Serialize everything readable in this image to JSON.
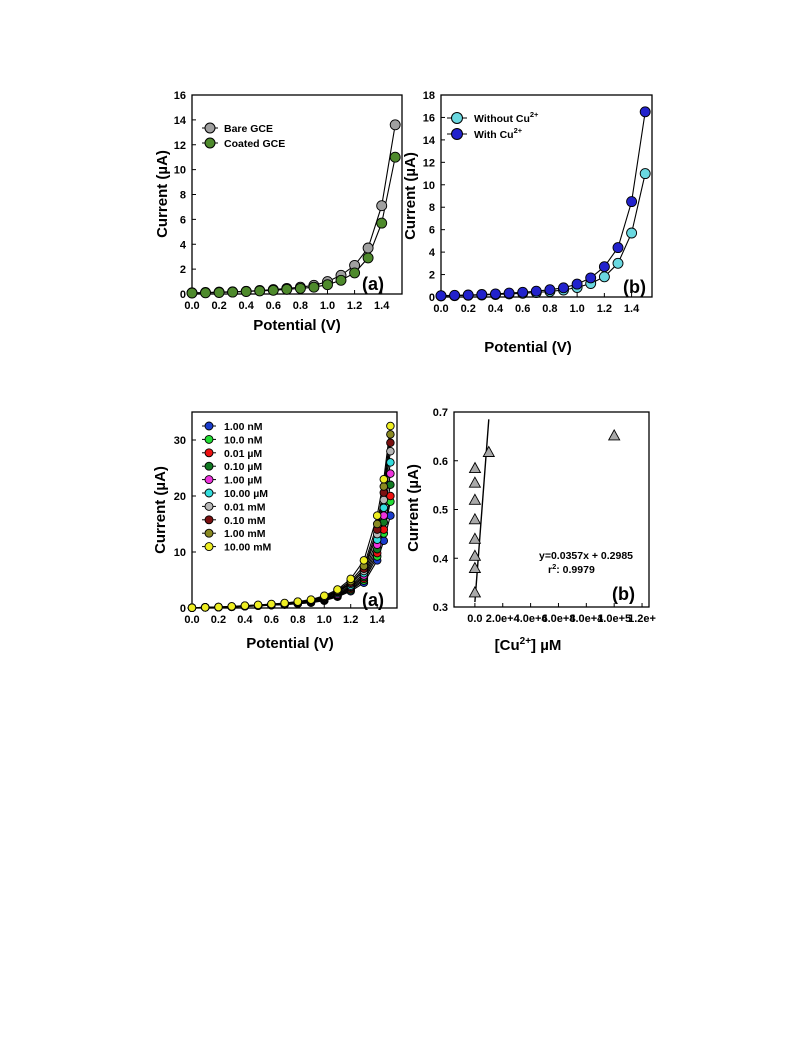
{
  "chart_data": [
    {
      "type": "line",
      "panel_label": "(a)",
      "xlabel": "Potential (V)",
      "ylabel": "Current (µA)",
      "xlim": [
        0,
        1.55
      ],
      "ylim": [
        0,
        16
      ],
      "x_ticks": [
        0.0,
        0.2,
        0.4,
        0.6,
        0.8,
        1.0,
        1.2,
        1.4
      ],
      "x_tick_labels": [
        "0.0",
        "0.2",
        "0.4",
        "0.6",
        "0.8",
        "1.0",
        "1.2",
        "1.4"
      ],
      "y_ticks": [
        0,
        2,
        4,
        6,
        8,
        10,
        12,
        14,
        16
      ],
      "y_tick_labels": [
        "0",
        "2",
        "4",
        "6",
        "8",
        "10",
        "12",
        "14",
        "16"
      ],
      "legend_position": "top-left",
      "series": [
        {
          "name": "Bare GCE",
          "color": "#a0a0a0",
          "x": [
            0.0,
            0.1,
            0.2,
            0.3,
            0.4,
            0.5,
            0.6,
            0.7,
            0.8,
            0.9,
            1.0,
            1.1,
            1.2,
            1.3,
            1.4,
            1.5
          ],
          "y": [
            0.1,
            0.12,
            0.15,
            0.18,
            0.22,
            0.28,
            0.35,
            0.45,
            0.55,
            0.7,
            1.0,
            1.5,
            2.3,
            3.7,
            7.1,
            13.6
          ]
        },
        {
          "name": "Coated GCE",
          "color": "#4e8a2c",
          "x": [
            0.0,
            0.1,
            0.2,
            0.3,
            0.4,
            0.5,
            0.6,
            0.7,
            0.8,
            0.9,
            1.0,
            1.1,
            1.2,
            1.3,
            1.4,
            1.5
          ],
          "y": [
            0.08,
            0.1,
            0.12,
            0.15,
            0.2,
            0.25,
            0.3,
            0.38,
            0.45,
            0.55,
            0.75,
            1.1,
            1.7,
            2.9,
            5.7,
            11.0
          ]
        }
      ]
    },
    {
      "type": "line",
      "panel_label": "(b)",
      "xlabel": "Potential (V)",
      "ylabel": "Current (µA)",
      "xlim": [
        0,
        1.55
      ],
      "ylim": [
        0,
        18
      ],
      "x_ticks": [
        0.0,
        0.2,
        0.4,
        0.6,
        0.8,
        1.0,
        1.2,
        1.4
      ],
      "x_tick_labels": [
        "0.0",
        "0.2",
        "0.4",
        "0.6",
        "0.8",
        "1.0",
        "1.2",
        "1.4"
      ],
      "y_ticks": [
        0,
        2,
        4,
        6,
        8,
        10,
        12,
        14,
        16,
        18
      ],
      "y_tick_labels": [
        "0",
        "2",
        "4",
        "6",
        "8",
        "10",
        "12",
        "14",
        "16",
        "18"
      ],
      "legend_position": "top-left",
      "series": [
        {
          "name": "Without Cu",
          "name_sup": "2+",
          "color": "#6ad8e0",
          "x": [
            0.0,
            0.1,
            0.2,
            0.3,
            0.4,
            0.5,
            0.6,
            0.7,
            0.8,
            0.9,
            1.0,
            1.1,
            1.2,
            1.3,
            1.4,
            1.5
          ],
          "y": [
            0.1,
            0.12,
            0.15,
            0.18,
            0.22,
            0.28,
            0.33,
            0.4,
            0.5,
            0.62,
            0.85,
            1.2,
            1.8,
            3.0,
            5.7,
            11.0
          ]
        },
        {
          "name": "With Cu",
          "name_sup": "2+",
          "color": "#2222cc",
          "x": [
            0.0,
            0.1,
            0.2,
            0.3,
            0.4,
            0.5,
            0.6,
            0.7,
            0.8,
            0.9,
            1.0,
            1.1,
            1.2,
            1.3,
            1.4,
            1.5
          ],
          "y": [
            0.12,
            0.15,
            0.18,
            0.22,
            0.28,
            0.35,
            0.42,
            0.52,
            0.65,
            0.82,
            1.15,
            1.7,
            2.7,
            4.4,
            8.5,
            16.5
          ]
        }
      ]
    },
    {
      "type": "line",
      "panel_label": "(a)",
      "xlabel": "Potential (V)",
      "ylabel": "Current (µA)",
      "xlim": [
        0,
        1.55
      ],
      "ylim": [
        0,
        35
      ],
      "x_ticks": [
        0.0,
        0.2,
        0.4,
        0.6,
        0.8,
        1.0,
        1.2,
        1.4
      ],
      "x_tick_labels": [
        "0.0",
        "0.2",
        "0.4",
        "0.6",
        "0.8",
        "1.0",
        "1.2",
        "1.4"
      ],
      "y_ticks": [
        0,
        10,
        20,
        30
      ],
      "y_tick_labels": [
        "0",
        "10",
        "20",
        "30"
      ],
      "legend_position": "top-left",
      "x": [
        0.0,
        0.1,
        0.2,
        0.3,
        0.4,
        0.5,
        0.6,
        0.7,
        0.8,
        0.9,
        1.0,
        1.1,
        1.2,
        1.3,
        1.4,
        1.45,
        1.5
      ],
      "series": [
        {
          "name": "1.00 nM",
          "color": "#1a3ccc",
          "y": [
            0.05,
            0.1,
            0.15,
            0.2,
            0.3,
            0.4,
            0.5,
            0.6,
            0.75,
            0.95,
            1.3,
            2.0,
            3.0,
            4.5,
            8.5,
            12.0,
            16.5
          ]
        },
        {
          "name": "10.0 nM",
          "color": "#22dd33",
          "y": [
            0.05,
            0.1,
            0.15,
            0.2,
            0.3,
            0.4,
            0.5,
            0.62,
            0.78,
            1.0,
            1.4,
            2.1,
            3.2,
            4.9,
            9.2,
            13.3,
            19.0
          ]
        },
        {
          "name": "0.01 µM",
          "color": "#ee1111",
          "y": [
            0.05,
            0.1,
            0.15,
            0.2,
            0.3,
            0.4,
            0.52,
            0.65,
            0.8,
            1.05,
            1.45,
            2.2,
            3.4,
            5.2,
            9.8,
            14.0,
            20.0
          ]
        },
        {
          "name": "0.10 µM",
          "color": "#117a22",
          "y": [
            0.05,
            0.1,
            0.15,
            0.22,
            0.32,
            0.42,
            0.55,
            0.68,
            0.85,
            1.1,
            1.5,
            2.3,
            3.6,
            5.5,
            10.5,
            15.3,
            22.0
          ]
        },
        {
          "name": "1.00 µM",
          "color": "#ee33dd",
          "y": [
            0.05,
            0.1,
            0.15,
            0.22,
            0.32,
            0.44,
            0.57,
            0.7,
            0.9,
            1.15,
            1.6,
            2.4,
            3.8,
            5.8,
            11.3,
            16.5,
            24.0
          ]
        },
        {
          "name": "10.00 µM",
          "color": "#33dddd",
          "y": [
            0.05,
            0.1,
            0.15,
            0.22,
            0.34,
            0.46,
            0.6,
            0.74,
            0.95,
            1.2,
            1.7,
            2.6,
            4.0,
            6.2,
            12.2,
            17.9,
            26.0
          ]
        },
        {
          "name": "0.01 mM",
          "color": "#b8b8b8",
          "y": [
            0.05,
            0.1,
            0.16,
            0.24,
            0.36,
            0.48,
            0.62,
            0.78,
            1.0,
            1.3,
            1.8,
            2.8,
            4.3,
            6.6,
            13.2,
            19.3,
            28.0
          ]
        },
        {
          "name": "0.10 mM",
          "color": "#7a1010",
          "y": [
            0.05,
            0.1,
            0.16,
            0.25,
            0.38,
            0.5,
            0.65,
            0.82,
            1.05,
            1.35,
            1.9,
            2.95,
            4.5,
            7.0,
            14.0,
            20.6,
            29.5
          ]
        },
        {
          "name": "1.00 mM",
          "color": "#8a8a22",
          "y": [
            0.05,
            0.1,
            0.17,
            0.26,
            0.4,
            0.53,
            0.68,
            0.86,
            1.1,
            1.42,
            2.0,
            3.1,
            4.8,
            7.5,
            15.0,
            21.7,
            31.0
          ]
        },
        {
          "name": "10.00 mM",
          "color": "#eeee22",
          "y": [
            0.05,
            0.1,
            0.18,
            0.28,
            0.42,
            0.56,
            0.72,
            0.9,
            1.15,
            1.5,
            2.2,
            3.3,
            5.2,
            8.5,
            16.5,
            23.0,
            32.5
          ]
        }
      ]
    },
    {
      "type": "scatter",
      "panel_label": "(b)",
      "xlabel": "[Cu",
      "xlabel_sup": "2+",
      "xlabel_tail": "] µM",
      "ylabel": "Current (µA)",
      "xlim": [
        -15000,
        125000
      ],
      "ylim": [
        0.3,
        0.7
      ],
      "x_ticks": [
        0,
        20000,
        40000,
        60000,
        80000,
        100000,
        120000
      ],
      "x_tick_labels": [
        "0.0",
        "2.0e+4",
        "4.0e+4",
        "6.0e+4",
        "8.0e+4",
        "1.0e+5",
        "1.2e+"
      ],
      "y_ticks": [
        0.3,
        0.4,
        0.5,
        0.6,
        0.7
      ],
      "y_tick_labels": [
        "0.3",
        "0.4",
        "0.5",
        "0.6",
        "0.7"
      ],
      "points": [
        {
          "x": 0.001,
          "y": 0.33
        },
        {
          "x": 0.01,
          "y": 0.38
        },
        {
          "x": 0.01,
          "y": 0.405
        },
        {
          "x": 0.1,
          "y": 0.44
        },
        {
          "x": 1,
          "y": 0.48
        },
        {
          "x": 10,
          "y": 0.52
        },
        {
          "x": 10,
          "y": 0.555
        },
        {
          "x": 100,
          "y": 0.585
        },
        {
          "x": 10000,
          "y": 0.618
        },
        {
          "x": 100000,
          "y": 0.652
        }
      ],
      "fit_line": {
        "x": [
          0,
          10000
        ],
        "y": [
          0.31,
          0.685
        ]
      },
      "equation": "y=0.0357x + 0.2985",
      "r2_prefix": "r",
      "r2_sup": "2",
      "r2_value": ": 0.9979"
    }
  ]
}
